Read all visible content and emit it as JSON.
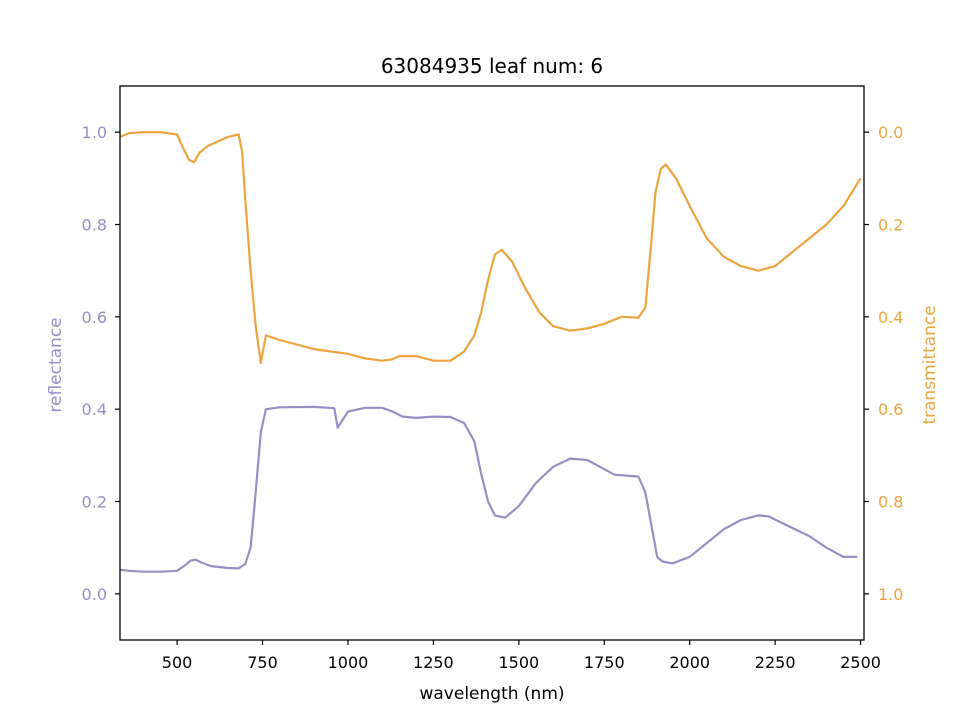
{
  "colors": {
    "reflectance": "#9590c4",
    "transmittance": "#eca43e",
    "axis": "#000000"
  },
  "chart_data": {
    "type": "line",
    "title": "63084935 leaf num: 6",
    "xlabel": "wavelength (nm)",
    "ylabel_left": "reflectance",
    "ylabel_right": "transmittance",
    "xlim": [
      333,
      2510
    ],
    "ylim_left": [
      -0.1,
      1.1
    ],
    "ylim_right": [
      1.1,
      -0.1
    ],
    "right_axis_inverted": true,
    "grid": false,
    "legend": "none",
    "x_ticks": [
      500,
      750,
      1000,
      1250,
      1500,
      1750,
      2000,
      2250,
      2500
    ],
    "y_ticks_left": [
      0.0,
      0.2,
      0.4,
      0.6,
      0.8,
      1.0
    ],
    "y_ticks_right": [
      0.0,
      0.2,
      0.4,
      0.6,
      0.8,
      1.0
    ],
    "series": [
      {
        "axis": "left",
        "color": "#9590c4",
        "points": [
          [
            333,
            0.052
          ],
          [
            360,
            0.05
          ],
          [
            400,
            0.048
          ],
          [
            450,
            0.048
          ],
          [
            500,
            0.05
          ],
          [
            520,
            0.06
          ],
          [
            540,
            0.072
          ],
          [
            555,
            0.074
          ],
          [
            570,
            0.068
          ],
          [
            600,
            0.06
          ],
          [
            650,
            0.056
          ],
          [
            680,
            0.055
          ],
          [
            700,
            0.065
          ],
          [
            715,
            0.1
          ],
          [
            730,
            0.22
          ],
          [
            745,
            0.35
          ],
          [
            760,
            0.4
          ],
          [
            800,
            0.404
          ],
          [
            900,
            0.405
          ],
          [
            960,
            0.402
          ],
          [
            970,
            0.36
          ],
          [
            1000,
            0.395
          ],
          [
            1050,
            0.403
          ],
          [
            1100,
            0.403
          ],
          [
            1130,
            0.395
          ],
          [
            1160,
            0.384
          ],
          [
            1200,
            0.381
          ],
          [
            1250,
            0.384
          ],
          [
            1300,
            0.383
          ],
          [
            1340,
            0.37
          ],
          [
            1370,
            0.33
          ],
          [
            1390,
            0.26
          ],
          [
            1410,
            0.2
          ],
          [
            1430,
            0.17
          ],
          [
            1460,
            0.165
          ],
          [
            1500,
            0.19
          ],
          [
            1550,
            0.24
          ],
          [
            1600,
            0.275
          ],
          [
            1650,
            0.293
          ],
          [
            1700,
            0.29
          ],
          [
            1750,
            0.27
          ],
          [
            1780,
            0.258
          ],
          [
            1850,
            0.254
          ],
          [
            1870,
            0.22
          ],
          [
            1890,
            0.14
          ],
          [
            1905,
            0.08
          ],
          [
            1920,
            0.07
          ],
          [
            1950,
            0.066
          ],
          [
            2000,
            0.08
          ],
          [
            2050,
            0.11
          ],
          [
            2100,
            0.14
          ],
          [
            2150,
            0.16
          ],
          [
            2200,
            0.17
          ],
          [
            2230,
            0.168
          ],
          [
            2280,
            0.15
          ],
          [
            2350,
            0.125
          ],
          [
            2400,
            0.1
          ],
          [
            2450,
            0.08
          ],
          [
            2490,
            0.08
          ]
        ]
      },
      {
        "axis": "right",
        "color": "#eca43e",
        "points": [
          [
            333,
            0.01
          ],
          [
            360,
            0.002
          ],
          [
            400,
            0.0
          ],
          [
            450,
            0.0
          ],
          [
            500,
            0.005
          ],
          [
            515,
            0.03
          ],
          [
            535,
            0.06
          ],
          [
            550,
            0.065
          ],
          [
            565,
            0.045
          ],
          [
            590,
            0.03
          ],
          [
            620,
            0.02
          ],
          [
            650,
            0.01
          ],
          [
            680,
            0.005
          ],
          [
            690,
            0.04
          ],
          [
            700,
            0.15
          ],
          [
            715,
            0.3
          ],
          [
            730,
            0.42
          ],
          [
            745,
            0.5
          ],
          [
            760,
            0.44
          ],
          [
            800,
            0.45
          ],
          [
            850,
            0.46
          ],
          [
            900,
            0.47
          ],
          [
            950,
            0.475
          ],
          [
            1000,
            0.48
          ],
          [
            1050,
            0.49
          ],
          [
            1100,
            0.495
          ],
          [
            1130,
            0.492
          ],
          [
            1150,
            0.485
          ],
          [
            1200,
            0.485
          ],
          [
            1250,
            0.495
          ],
          [
            1300,
            0.495
          ],
          [
            1340,
            0.475
          ],
          [
            1370,
            0.44
          ],
          [
            1390,
            0.39
          ],
          [
            1410,
            0.32
          ],
          [
            1430,
            0.265
          ],
          [
            1450,
            0.255
          ],
          [
            1480,
            0.28
          ],
          [
            1520,
            0.34
          ],
          [
            1560,
            0.39
          ],
          [
            1600,
            0.42
          ],
          [
            1650,
            0.43
          ],
          [
            1700,
            0.425
          ],
          [
            1750,
            0.415
          ],
          [
            1800,
            0.4
          ],
          [
            1850,
            0.402
          ],
          [
            1870,
            0.38
          ],
          [
            1885,
            0.26
          ],
          [
            1900,
            0.13
          ],
          [
            1915,
            0.08
          ],
          [
            1930,
            0.07
          ],
          [
            1960,
            0.1
          ],
          [
            2000,
            0.16
          ],
          [
            2050,
            0.23
          ],
          [
            2100,
            0.27
          ],
          [
            2150,
            0.29
          ],
          [
            2200,
            0.3
          ],
          [
            2250,
            0.29
          ],
          [
            2300,
            0.26
          ],
          [
            2350,
            0.23
          ],
          [
            2400,
            0.2
          ],
          [
            2450,
            0.16
          ],
          [
            2500,
            0.1
          ]
        ]
      }
    ]
  }
}
